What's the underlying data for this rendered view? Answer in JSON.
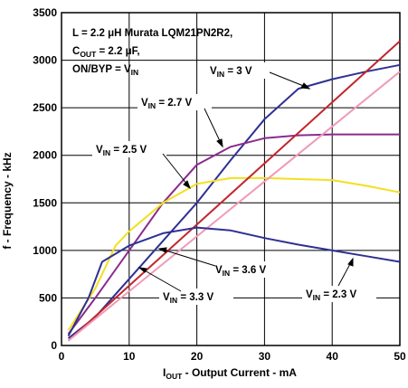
{
  "chart_data": {
    "type": "line",
    "xlabel": {
      "main": "I",
      "sub": "OUT",
      "rest": " - Output Current - mA"
    },
    "ylabel": "f - Frequency - kHz",
    "xlim": [
      0,
      50
    ],
    "ylim": [
      0,
      3500
    ],
    "xticks": [
      "0",
      "10",
      "20",
      "30",
      "40",
      "50"
    ],
    "yticks": [
      "0",
      "500",
      "1000",
      "1500",
      "2000",
      "2500",
      "3000",
      "3500"
    ],
    "grid": true,
    "conditions": [
      {
        "main": "L = 2.2 ",
        "mu": "μ",
        "rest": "H Murata LQM21PN2R2,"
      },
      {
        "main": "C",
        "sub": "OUT",
        "rest": " = 2.2 ",
        "mu": "μ",
        "tail": "F,"
      },
      {
        "main": "ON/BYP = V",
        "sub": "IN",
        "rest": ""
      }
    ],
    "series": [
      {
        "name": "VIN = 3 V",
        "color": "#2e3192",
        "x": [
          1,
          5,
          10,
          15,
          20,
          25,
          30,
          35,
          40,
          45,
          50
        ],
        "y": [
          75,
          300,
          700,
          1100,
          1500,
          1950,
          2380,
          2700,
          2800,
          2880,
          2950
        ]
      },
      {
        "name": "VIN = 2.7 V",
        "color": "#8b2a8e",
        "x": [
          1,
          5,
          10,
          15,
          20,
          25,
          30,
          35,
          40,
          45,
          50
        ],
        "y": [
          120,
          500,
          1000,
          1500,
          1900,
          2090,
          2180,
          2210,
          2220,
          2220,
          2220
        ]
      },
      {
        "name": "VIN = 2.5 V",
        "color": "#f2e01f",
        "x": [
          1,
          5,
          8,
          10,
          15,
          20,
          25,
          30,
          35,
          40,
          45,
          50
        ],
        "y": [
          160,
          600,
          1050,
          1200,
          1500,
          1700,
          1760,
          1760,
          1750,
          1740,
          1680,
          1610
        ]
      },
      {
        "name": "VIN = 3.6 V",
        "color": "#c1272d",
        "x": [
          1,
          50
        ],
        "y": [
          50,
          3200
        ]
      },
      {
        "name": "VIN = 3.3 V",
        "color": "#f09ab7",
        "x": [
          1,
          50
        ],
        "y": [
          50,
          2880
        ]
      },
      {
        "name": "VIN = 2.3 V",
        "color": "#2e3192",
        "x": [
          1,
          4,
          6,
          10,
          15,
          20,
          25,
          30,
          35,
          40,
          45,
          50
        ],
        "y": [
          100,
          500,
          880,
          1050,
          1180,
          1240,
          1210,
          1130,
          1060,
          1000,
          940,
          880
        ]
      }
    ],
    "annotations": [
      {
        "main": "V",
        "sub": "IN",
        "rest": " = 3 V"
      },
      {
        "main": "V",
        "sub": "IN",
        "rest": " = 2.7 V"
      },
      {
        "main": "V",
        "sub": "IN",
        "rest": " = 2.5 V"
      },
      {
        "main": "V",
        "sub": "IN",
        "rest": " = 3.6 V"
      },
      {
        "main": "V",
        "sub": "IN",
        "rest": " = 3.3 V"
      },
      {
        "main": "V",
        "sub": "IN",
        "rest": " = 2.3 V"
      }
    ]
  }
}
